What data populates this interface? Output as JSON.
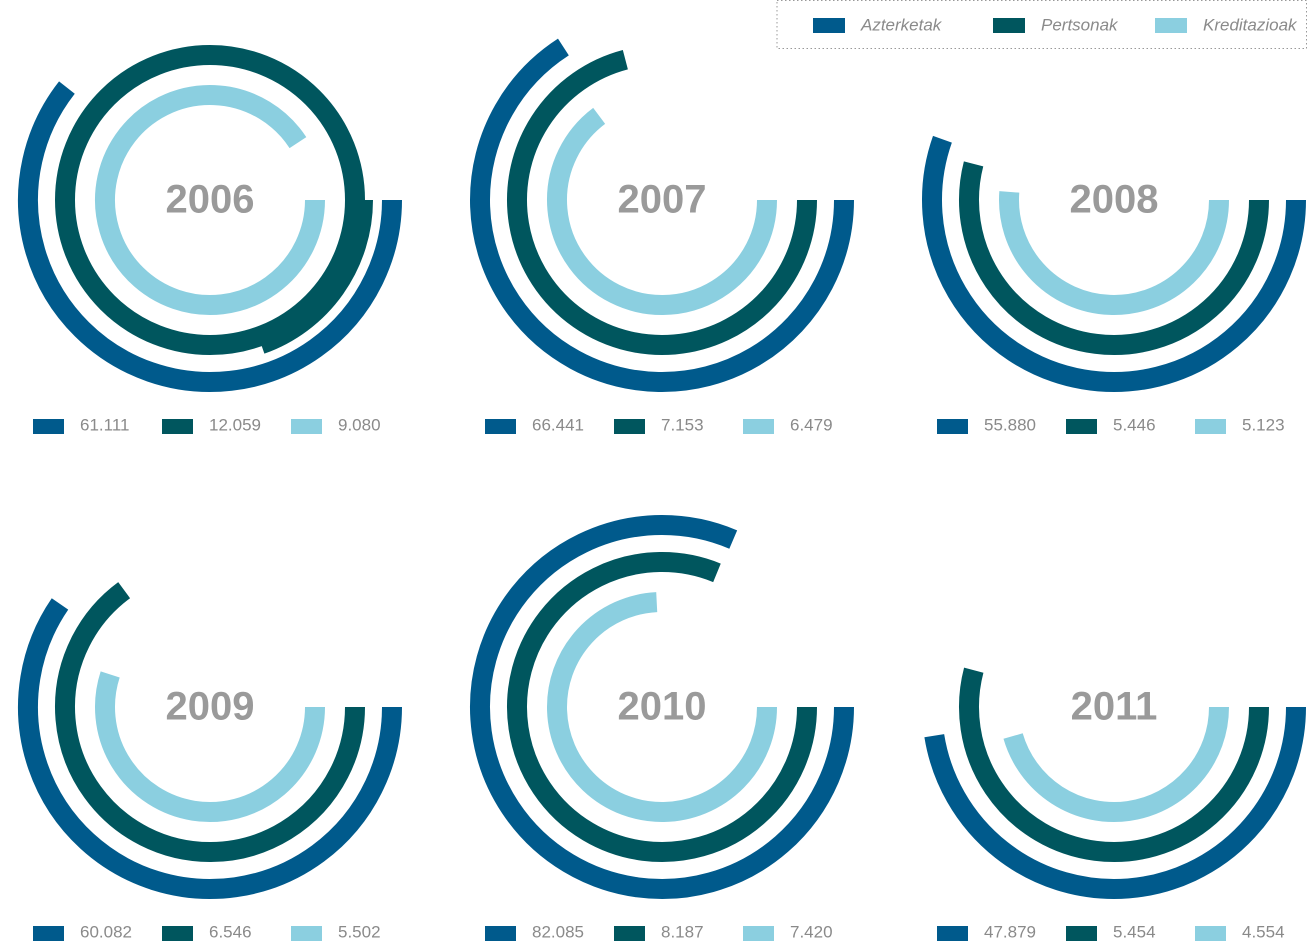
{
  "chart_data": {
    "type": "radial_bar",
    "categories": [
      "2006",
      "2007",
      "2008",
      "2009",
      "2010",
      "2011"
    ],
    "series": [
      {
        "name": "Azterketak",
        "color": "#005a8c",
        "values": [
          61.111,
          66.441,
          55.88,
          60.082,
          82.085,
          47.879
        ],
        "value_labels": [
          "61.111",
          "66.441",
          "55.880",
          "60.082",
          "82.085",
          "47.879"
        ]
      },
      {
        "name": "Pertsonak",
        "color": "#00565e",
        "values": [
          12.059,
          7.153,
          5.446,
          6.546,
          8.187,
          5.454
        ],
        "value_labels": [
          "12.059",
          "7.153",
          "5.446",
          "6.546",
          "8.187",
          "5.454"
        ]
      },
      {
        "name": "Kreditazioak",
        "color": "#8bcfe0",
        "values": [
          9.08,
          6.479,
          5.123,
          5.502,
          7.42,
          4.554
        ],
        "value_labels": [
          "9.080",
          "6.479",
          "5.123",
          "5.502",
          "7.420",
          "4.554"
        ]
      }
    ],
    "legend": "top-right"
  }
}
